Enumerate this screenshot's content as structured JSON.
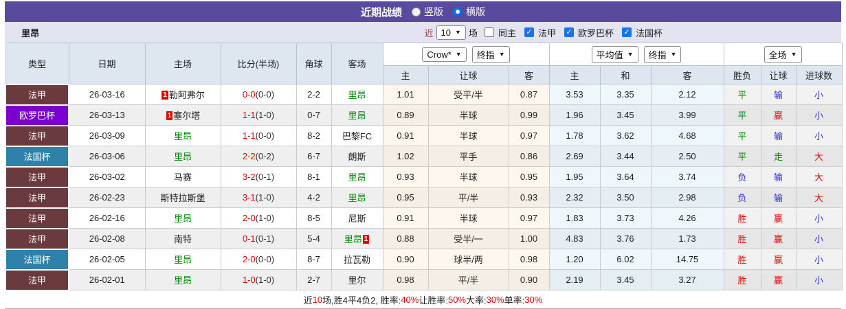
{
  "titlebar": {
    "title": "近期战绩",
    "layout_vertical": "竖版",
    "layout_horizontal": "横版"
  },
  "filter": {
    "team": "里昂",
    "near": "近",
    "count": "10",
    "games": "场",
    "same_home": "同主",
    "league_1": "法甲",
    "league_2": "欧罗巴杯",
    "league_3": "法国杯"
  },
  "header": {
    "col_type": "类型",
    "col_date": "日期",
    "col_home": "主场",
    "col_score": "比分(半场)",
    "col_corner": "角球",
    "col_away": "客场",
    "dd_crow": "Crow*",
    "dd_final1": "终指",
    "dd_avg": "平均值",
    "dd_final2": "终指",
    "dd_full": "全场",
    "odds_home": "主",
    "odds_handicap": "让球",
    "odds_away": "客",
    "avg_home": "主",
    "avg_draw": "和",
    "avg_away": "客",
    "res_outcome": "胜负",
    "res_handicap": "让球",
    "res_goals": "进球数"
  },
  "league_colors": {
    "法甲": "#6B3A3E",
    "欧罗巴杯": "#7A00D2",
    "法国杯": "#2E81A8"
  },
  "value_colors": {
    "red": "#e60000",
    "green": "#008800",
    "blue": "#3333cc"
  },
  "rows": [
    {
      "league": "法甲",
      "date": "26-03-16",
      "home_badge_pre": "1",
      "home": "勒阿弗尔",
      "home_lyon": false,
      "score_full": "0-0",
      "score_half": "(0-0)",
      "corners": "2-2",
      "away": "里昂",
      "away_badge_post": "",
      "away_lyon": true,
      "odds": [
        "1.01",
        "受平/半",
        "0.87"
      ],
      "avg": [
        "3.53",
        "3.35",
        "2.12"
      ],
      "results": [
        [
          "平",
          "green"
        ],
        [
          "输",
          "blue"
        ],
        [
          "小",
          "blue"
        ]
      ]
    },
    {
      "league": "欧罗巴杯",
      "date": "26-03-13",
      "home_badge_pre": "1",
      "home": "塞尔塔",
      "home_lyon": false,
      "score_full": "1-1",
      "score_half": "(1-0)",
      "corners": "0-7",
      "away": "里昂",
      "away_badge_post": "",
      "away_lyon": true,
      "odds": [
        "0.89",
        "半球",
        "0.99"
      ],
      "avg": [
        "1.96",
        "3.45",
        "3.99"
      ],
      "results": [
        [
          "平",
          "green"
        ],
        [
          "赢",
          "red"
        ],
        [
          "小",
          "blue"
        ]
      ]
    },
    {
      "league": "法甲",
      "date": "26-03-09",
      "home_badge_pre": "",
      "home": "里昂",
      "home_lyon": true,
      "score_full": "1-1",
      "score_half": "(0-0)",
      "corners": "8-2",
      "away": "巴黎FC",
      "away_badge_post": "",
      "away_lyon": false,
      "odds": [
        "0.91",
        "半球",
        "0.97"
      ],
      "avg": [
        "1.78",
        "3.62",
        "4.68"
      ],
      "results": [
        [
          "平",
          "green"
        ],
        [
          "输",
          "blue"
        ],
        [
          "小",
          "blue"
        ]
      ]
    },
    {
      "league": "法国杯",
      "date": "26-03-06",
      "home_badge_pre": "",
      "home": "里昂",
      "home_lyon": true,
      "score_full": "2-2",
      "score_half": "(0-2)",
      "corners": "6-7",
      "away": "朗斯",
      "away_badge_post": "",
      "away_lyon": false,
      "odds": [
        "1.02",
        "平手",
        "0.86"
      ],
      "avg": [
        "2.69",
        "3.44",
        "2.50"
      ],
      "results": [
        [
          "平",
          "green"
        ],
        [
          "走",
          "green"
        ],
        [
          "大",
          "red"
        ]
      ]
    },
    {
      "league": "法甲",
      "date": "26-03-02",
      "home_badge_pre": "",
      "home": "马赛",
      "home_lyon": false,
      "score_full": "3-2",
      "score_half": "(0-1)",
      "corners": "8-1",
      "away": "里昂",
      "away_badge_post": "",
      "away_lyon": true,
      "odds": [
        "0.93",
        "半球",
        "0.95"
      ],
      "avg": [
        "1.95",
        "3.64",
        "3.74"
      ],
      "results": [
        [
          "负",
          "blue"
        ],
        [
          "输",
          "blue"
        ],
        [
          "大",
          "red"
        ]
      ]
    },
    {
      "league": "法甲",
      "date": "26-02-23",
      "home_badge_pre": "",
      "home": "斯特拉斯堡",
      "home_lyon": false,
      "score_full": "3-1",
      "score_half": "(1-0)",
      "corners": "4-2",
      "away": "里昂",
      "away_badge_post": "",
      "away_lyon": true,
      "odds": [
        "0.95",
        "平/半",
        "0.93"
      ],
      "avg": [
        "2.32",
        "3.50",
        "2.98"
      ],
      "results": [
        [
          "负",
          "blue"
        ],
        [
          "输",
          "blue"
        ],
        [
          "大",
          "red"
        ]
      ]
    },
    {
      "league": "法甲",
      "date": "26-02-16",
      "home_badge_pre": "",
      "home": "里昂",
      "home_lyon": true,
      "score_full": "2-0",
      "score_half": "(1-0)",
      "corners": "8-5",
      "away": "尼斯",
      "away_badge_post": "",
      "away_lyon": false,
      "odds": [
        "0.91",
        "半球",
        "0.97"
      ],
      "avg": [
        "1.83",
        "3.73",
        "4.26"
      ],
      "results": [
        [
          "胜",
          "red"
        ],
        [
          "赢",
          "red"
        ],
        [
          "小",
          "blue"
        ]
      ]
    },
    {
      "league": "法甲",
      "date": "26-02-08",
      "home_badge_pre": "",
      "home": "南特",
      "home_lyon": false,
      "score_full": "0-1",
      "score_half": "(0-1)",
      "corners": "5-4",
      "away": "里昂",
      "away_badge_post": "1",
      "away_lyon": true,
      "odds": [
        "0.88",
        "受半/一",
        "1.00"
      ],
      "avg": [
        "4.83",
        "3.76",
        "1.73"
      ],
      "results": [
        [
          "胜",
          "red"
        ],
        [
          "赢",
          "red"
        ],
        [
          "小",
          "blue"
        ]
      ]
    },
    {
      "league": "法国杯",
      "date": "26-02-05",
      "home_badge_pre": "",
      "home": "里昂",
      "home_lyon": true,
      "score_full": "2-0",
      "score_half": "(0-0)",
      "corners": "8-7",
      "away": "拉瓦勒",
      "away_badge_post": "",
      "away_lyon": false,
      "odds": [
        "0.90",
        "球半/两",
        "0.98"
      ],
      "avg": [
        "1.20",
        "6.02",
        "14.75"
      ],
      "results": [
        [
          "胜",
          "red"
        ],
        [
          "赢",
          "red"
        ],
        [
          "小",
          "blue"
        ]
      ]
    },
    {
      "league": "法甲",
      "date": "26-02-01",
      "home_badge_pre": "",
      "home": "里昂",
      "home_lyon": true,
      "score_full": "1-0",
      "score_half": "(1-0)",
      "corners": "2-7",
      "away": "里尔",
      "away_badge_post": "",
      "away_lyon": false,
      "odds": [
        "0.98",
        "平/半",
        "0.90"
      ],
      "avg": [
        "2.19",
        "3.45",
        "3.27"
      ],
      "results": [
        [
          "胜",
          "red"
        ],
        [
          "赢",
          "red"
        ],
        [
          "小",
          "blue"
        ]
      ]
    }
  ],
  "footer_segments": [
    {
      "text": "近",
      "color": "black"
    },
    {
      "text": "10",
      "color": "red"
    },
    {
      "text": "场,胜4平4负2, 胜率:",
      "color": "black"
    },
    {
      "text": "40%",
      "color": "red"
    },
    {
      "text": " 让胜率:",
      "color": "black"
    },
    {
      "text": "50%",
      "color": "red"
    },
    {
      "text": " 大率:",
      "color": "black"
    },
    {
      "text": "30%",
      "color": "red"
    },
    {
      "text": " 单率:",
      "color": "black"
    },
    {
      "text": "30%",
      "color": "red"
    }
  ]
}
